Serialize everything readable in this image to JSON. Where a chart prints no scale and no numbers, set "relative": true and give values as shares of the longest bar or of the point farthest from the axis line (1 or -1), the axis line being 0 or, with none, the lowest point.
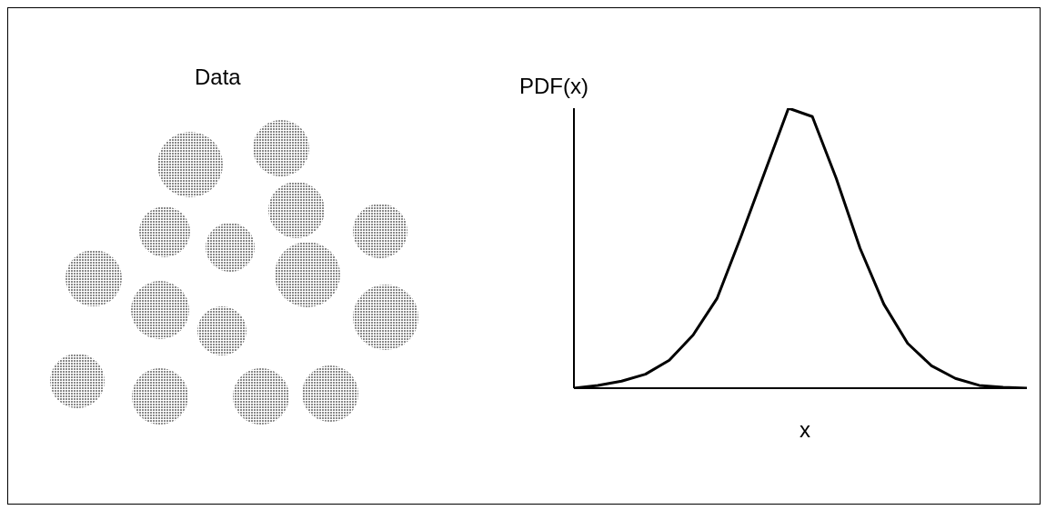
{
  "chart_data": [
    {
      "type": "other",
      "title": "Data"
    },
    {
      "type": "line",
      "relative": true,
      "ylabel": "PDF(x)",
      "xlabel": "x",
      "marker": "none",
      "line_style": "solid",
      "categories": [
        null,
        null,
        null,
        null,
        null,
        null,
        null,
        null,
        null,
        null,
        null,
        null,
        null,
        null,
        null,
        null,
        null,
        null,
        null,
        null
      ],
      "series": [
        {
          "color": "#000000",
          "values": [
            0,
            0.01,
            0.025,
            0.05,
            0.1,
            0.19,
            0.32,
            0.54,
            0.77,
            1,
            0.97,
            0.75,
            0.5,
            0.3,
            0.16,
            0.08,
            0.035,
            0.01,
            0.003,
            0
          ]
        }
      ]
    }
  ]
}
